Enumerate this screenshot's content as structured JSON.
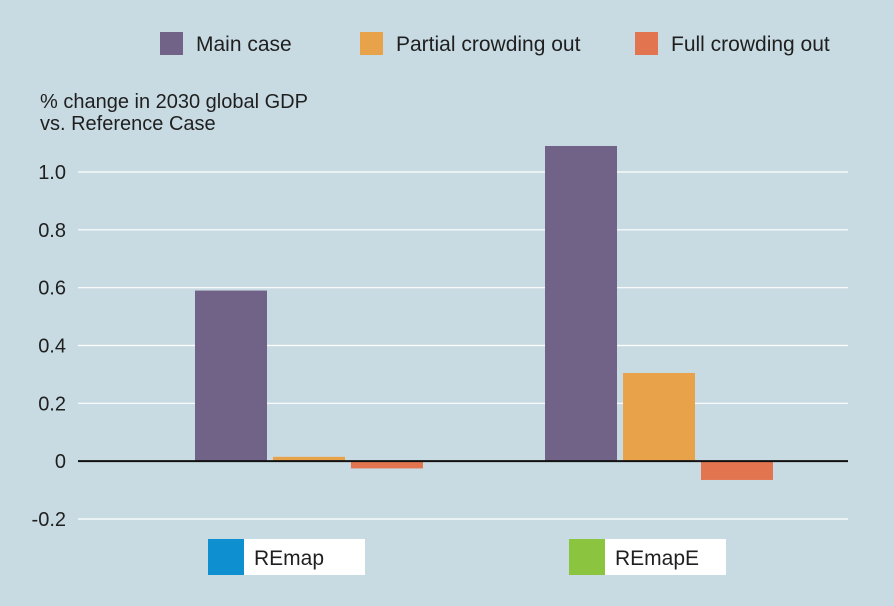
{
  "chart_data": {
    "type": "bar",
    "ylabel_line1": "% change in 2030 global GDP",
    "ylabel_line2": "vs. Reference Case",
    "ylim": [
      -0.2,
      1.1
    ],
    "grid": true,
    "legend_position": "top",
    "yticks": [
      "1.0",
      "0.8",
      "0.6",
      "0.4",
      "0.2",
      "0",
      "-0.2"
    ],
    "categories": [
      "REmap",
      "REmapE"
    ],
    "category_swatch_colors": [
      "#0e8fd0",
      "#8bc540"
    ],
    "series": [
      {
        "name": "Main case",
        "color": "#716387",
        "values": [
          0.59,
          1.09
        ]
      },
      {
        "name": "Partial crowding out",
        "color": "#e8a34a",
        "values": [
          0.015,
          0.305
        ]
      },
      {
        "name": "Full crowding out",
        "color": "#e37450",
        "values": [
          -0.025,
          -0.065
        ]
      }
    ]
  },
  "colors": {
    "background": "#c8dbe3",
    "grid": "#ffffff",
    "axis": "#111111"
  }
}
